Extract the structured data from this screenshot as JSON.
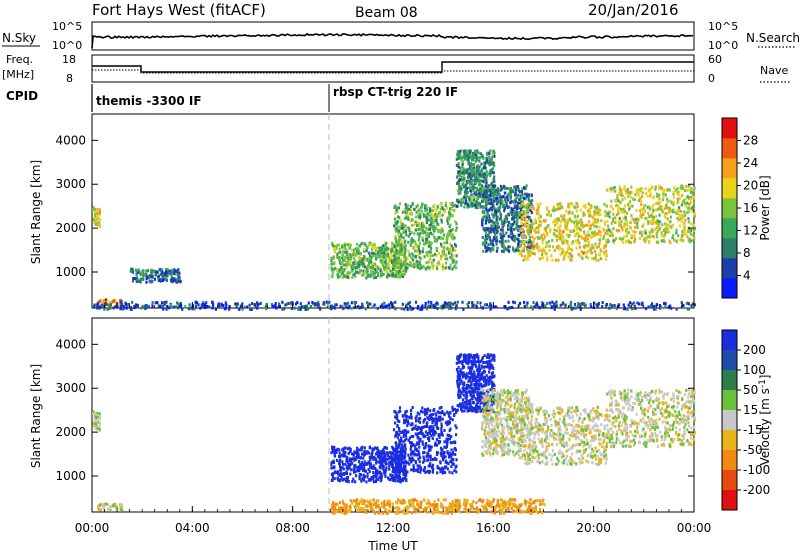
{
  "header": {
    "title": "Fort Hays West (fitACF)",
    "beam": "Beam 08",
    "date": "20/Jan/2016"
  },
  "panels": {
    "nsky": {
      "left_label": "N.Sky",
      "right_label": "N.Search",
      "left_ticks": [
        "10^5",
        "10^0"
      ],
      "right_ticks": [
        "10^5",
        "10^0"
      ]
    },
    "freq": {
      "left_label_1": "Freq.",
      "left_label_2": "[MHz]",
      "right_label": "Nave",
      "left_ticks": [
        "18",
        "8"
      ],
      "right_ticks": [
        "60",
        "0"
      ]
    },
    "cpid": {
      "label": "CPID",
      "segments": [
        {
          "start_hour": 0.0,
          "label": "themis -3300 IF"
        },
        {
          "start_hour": 9.5,
          "label": "rbsp CT-trig 220 IF"
        }
      ]
    }
  },
  "axes": {
    "x_ticks": [
      "00:00",
      "04:00",
      "08:00",
      "12:00",
      "16:00",
      "20:00",
      "00:00"
    ],
    "x_range_hours": [
      0,
      24
    ],
    "x_label": "Time UT",
    "y_label": "Slant Range [km]",
    "y_ticks": [
      "1000",
      "2000",
      "3000",
      "4000"
    ],
    "y_range_km": [
      180,
      4600
    ]
  },
  "colorbars": {
    "power": {
      "label": "Power [dB]",
      "ticks": [
        "4",
        "8",
        "12",
        "16",
        "20",
        "24",
        "28"
      ],
      "range": [
        0,
        32
      ],
      "colors": [
        "#0a1aff",
        "#1b3fa8",
        "#2e7d6a",
        "#3aa85a",
        "#7ac63a",
        "#e9d21a",
        "#f4a21a",
        "#ee5a12",
        "#e01010"
      ]
    },
    "velocity": {
      "label": "Velocity [m s-1]",
      "ticks": [
        "200",
        "100",
        "50",
        "15",
        "-15",
        "-50",
        "-100",
        "-200"
      ],
      "colors": [
        "#1a2ee0",
        "#1e4da8",
        "#2e7d4a",
        "#69c23a",
        "#c8c8c8",
        "#e9b31a",
        "#f08a12",
        "#e64a10",
        "#e01010"
      ]
    }
  },
  "chart_data": [
    {
      "type": "heatmap",
      "name": "Power",
      "x_range": [
        0,
        24
      ],
      "y_range": [
        180,
        4600
      ],
      "ylabel": "Slant Range [km]",
      "colorbar_label": "Power [dB]",
      "regions": [
        {
          "t0": 0.0,
          "t1": 0.3,
          "r0": 2050,
          "r1": 2500,
          "v": 18
        },
        {
          "t0": 0.2,
          "t1": 1.2,
          "r0": 250,
          "r1": 400,
          "v": 24
        },
        {
          "t0": 1.5,
          "t1": 3.5,
          "r0": 800,
          "r1": 1100,
          "v": 8
        },
        {
          "t0": 9.5,
          "t1": 12.5,
          "r0": 900,
          "r1": 1700,
          "v": 14
        },
        {
          "t0": 12.0,
          "t1": 14.5,
          "r0": 1100,
          "r1": 2600,
          "v": 14
        },
        {
          "t0": 14.5,
          "t1": 16.0,
          "r0": 2500,
          "r1": 3800,
          "v": 10
        },
        {
          "t0": 15.5,
          "t1": 17.5,
          "r0": 1500,
          "r1": 3000,
          "v": 8
        },
        {
          "t0": 17.0,
          "t1": 20.5,
          "r0": 1300,
          "r1": 2600,
          "v": 20
        },
        {
          "t0": 20.5,
          "t1": 24.0,
          "r0": 1700,
          "r1": 3000,
          "v": 18
        },
        {
          "t0": 0.0,
          "t1": 24.0,
          "r0": 180,
          "r1": 350,
          "v": 6
        }
      ]
    },
    {
      "type": "heatmap",
      "name": "Velocity",
      "x_range": [
        0,
        24
      ],
      "y_range": [
        180,
        4600
      ],
      "ylabel": "Slant Range [km]",
      "colorbar_label": "Velocity [m s-1]",
      "regions": [
        {
          "t0": 0.0,
          "t1": 0.3,
          "r0": 2050,
          "r1": 2500,
          "v": 0
        },
        {
          "t0": 0.2,
          "t1": 1.2,
          "r0": 250,
          "r1": 400,
          "v": 0
        },
        {
          "t0": 9.5,
          "t1": 12.5,
          "r0": 900,
          "r1": 1700,
          "v": 250
        },
        {
          "t0": 12.0,
          "t1": 14.5,
          "r0": 1100,
          "r1": 2600,
          "v": 250
        },
        {
          "t0": 14.5,
          "t1": 16.0,
          "r0": 2500,
          "r1": 3800,
          "v": 250
        },
        {
          "t0": 15.5,
          "t1": 17.5,
          "r0": 1500,
          "r1": 3000,
          "v": 0
        },
        {
          "t0": 17.0,
          "t1": 20.5,
          "r0": 1300,
          "r1": 2600,
          "v": 0
        },
        {
          "t0": 20.5,
          "t1": 24.0,
          "r0": 1700,
          "r1": 3000,
          "v": 0
        },
        {
          "t0": 9.5,
          "t1": 18.0,
          "r0": 180,
          "r1": 500,
          "v": -50
        }
      ]
    }
  ]
}
